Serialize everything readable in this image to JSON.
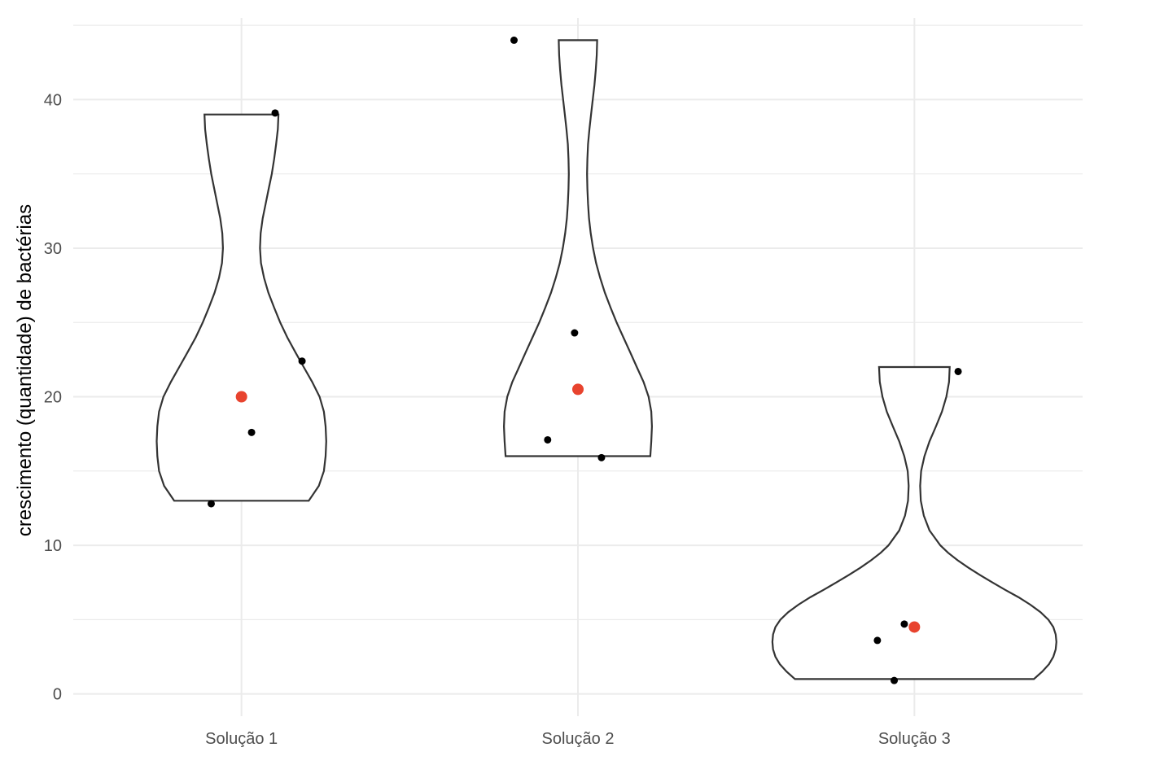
{
  "chart_data": {
    "type": "violin",
    "title": "",
    "xlabel": "",
    "ylabel": "crescimento (quantidade) de bactérias",
    "ylim": [
      -1.5,
      45.5
    ],
    "yticks": [
      0,
      10,
      20,
      30,
      40
    ],
    "grid": true,
    "legend": "none",
    "colors": {
      "point": "#000000",
      "mean": "#e8432e",
      "violin_stroke": "#333333",
      "grid": "#ebebeb"
    },
    "categories": [
      "Solução 1",
      "Solução 2",
      "Solução 3"
    ],
    "groups": [
      {
        "category": "Solução 1",
        "points": [
          {
            "offset": 0.1,
            "value": 39.1
          },
          {
            "offset": 0.18,
            "value": 22.4
          },
          {
            "offset": 0.03,
            "value": 17.6
          },
          {
            "offset": -0.09,
            "value": 12.8
          }
        ],
        "mean": 20.0,
        "violin": {
          "min": 13.0,
          "max": 39.0,
          "profile": [
            [
              13.0,
              0.2
            ],
            [
              14.0,
              0.23
            ],
            [
              15.0,
              0.245
            ],
            [
              16.0,
              0.25
            ],
            [
              17.0,
              0.252
            ],
            [
              18.0,
              0.25
            ],
            [
              19.0,
              0.245
            ],
            [
              20.0,
              0.232
            ],
            [
              21.0,
              0.21
            ],
            [
              22.0,
              0.185
            ],
            [
              23.0,
              0.16
            ],
            [
              24.0,
              0.136
            ],
            [
              25.0,
              0.115
            ],
            [
              26.0,
              0.097
            ],
            [
              27.0,
              0.08
            ],
            [
              28.0,
              0.067
            ],
            [
              29.0,
              0.058
            ],
            [
              30.0,
              0.055
            ],
            [
              31.0,
              0.057
            ],
            [
              32.0,
              0.063
            ],
            [
              33.0,
              0.072
            ],
            [
              34.0,
              0.081
            ],
            [
              35.0,
              0.09
            ],
            [
              36.0,
              0.097
            ],
            [
              37.0,
              0.103
            ],
            [
              38.0,
              0.108
            ],
            [
              39.0,
              0.11
            ]
          ]
        }
      },
      {
        "category": "Solução 2",
        "points": [
          {
            "offset": -0.19,
            "value": 44.0
          },
          {
            "offset": -0.01,
            "value": 24.3
          },
          {
            "offset": -0.09,
            "value": 17.1
          },
          {
            "offset": 0.07,
            "value": 15.9
          }
        ],
        "mean": 20.5,
        "violin": {
          "min": 16.0,
          "max": 44.0,
          "profile": [
            [
              16.0,
              0.215
            ],
            [
              17.0,
              0.218
            ],
            [
              18.0,
              0.22
            ],
            [
              19.0,
              0.218
            ],
            [
              20.0,
              0.21
            ],
            [
              21.0,
              0.195
            ],
            [
              22.0,
              0.175
            ],
            [
              23.0,
              0.155
            ],
            [
              24.0,
              0.135
            ],
            [
              25.0,
              0.115
            ],
            [
              26.0,
              0.097
            ],
            [
              27.0,
              0.08
            ],
            [
              28.0,
              0.066
            ],
            [
              29.0,
              0.054
            ],
            [
              30.0,
              0.045
            ],
            [
              31.0,
              0.038
            ],
            [
              32.0,
              0.033
            ],
            [
              33.0,
              0.03
            ],
            [
              34.0,
              0.028
            ],
            [
              35.0,
              0.027
            ],
            [
              36.0,
              0.028
            ],
            [
              37.0,
              0.03
            ],
            [
              38.0,
              0.034
            ],
            [
              39.0,
              0.039
            ],
            [
              40.0,
              0.044
            ],
            [
              41.0,
              0.049
            ],
            [
              42.0,
              0.053
            ],
            [
              43.0,
              0.056
            ],
            [
              44.0,
              0.057
            ]
          ]
        }
      },
      {
        "category": "Solução 3",
        "points": [
          {
            "offset": 0.13,
            "value": 21.7
          },
          {
            "offset": -0.03,
            "value": 4.7
          },
          {
            "offset": -0.11,
            "value": 3.6
          },
          {
            "offset": -0.06,
            "value": 0.9
          }
        ],
        "mean": 4.5,
        "violin": {
          "min": 1.0,
          "max": 22.0,
          "profile": [
            [
              1.0,
              0.355
            ],
            [
              1.5,
              0.38
            ],
            [
              2.0,
              0.4
            ],
            [
              2.5,
              0.413
            ],
            [
              3.0,
              0.42
            ],
            [
              3.5,
              0.422
            ],
            [
              4.0,
              0.42
            ],
            [
              4.5,
              0.413
            ],
            [
              5.0,
              0.398
            ],
            [
              5.5,
              0.375
            ],
            [
              6.0,
              0.345
            ],
            [
              6.5,
              0.31
            ],
            [
              7.0,
              0.27
            ],
            [
              7.5,
              0.232
            ],
            [
              8.0,
              0.195
            ],
            [
              8.5,
              0.16
            ],
            [
              9.0,
              0.128
            ],
            [
              9.5,
              0.1
            ],
            [
              10.0,
              0.077
            ],
            [
              11.0,
              0.045
            ],
            [
              12.0,
              0.028
            ],
            [
              13.0,
              0.019
            ],
            [
              14.0,
              0.017
            ],
            [
              15.0,
              0.02
            ],
            [
              16.0,
              0.03
            ],
            [
              17.0,
              0.045
            ],
            [
              18.0,
              0.064
            ],
            [
              19.0,
              0.082
            ],
            [
              20.0,
              0.095
            ],
            [
              21.0,
              0.103
            ],
            [
              22.0,
              0.105
            ]
          ]
        }
      }
    ]
  }
}
